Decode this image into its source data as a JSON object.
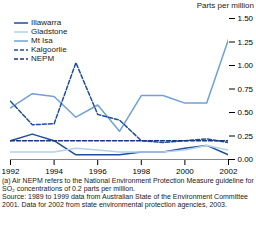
{
  "chart_data": {
    "type": "line",
    "ylabel": "Parts per million",
    "x": [
      1992,
      1993,
      1994,
      1995,
      1996,
      1997,
      1998,
      1999,
      2000,
      2001,
      2002
    ],
    "series": [
      {
        "name": "Illawarra",
        "color": "#1f4e9c",
        "line_style": "solid",
        "values": [
          0.2,
          0.27,
          0.2,
          0.05,
          0.05,
          0.05,
          0.08,
          0.08,
          0.12,
          0.15,
          0.05
        ]
      },
      {
        "name": "Gladstone",
        "color": "#b3d0ec",
        "line_style": "solid",
        "values": [
          0.08,
          0.08,
          0.08,
          0.12,
          0.1,
          0.08,
          0.08,
          0.08,
          0.1,
          0.15,
          0.1
        ]
      },
      {
        "name": "Mt Isa",
        "color": "#6fa0d8",
        "line_style": "solid",
        "values": [
          0.55,
          0.7,
          0.67,
          0.45,
          0.58,
          0.3,
          0.68,
          0.68,
          0.6,
          0.6,
          1.28
        ]
      },
      {
        "name": "Kalgoorlie",
        "color": "#1f4e9c",
        "line_style": "dashed",
        "values": [
          0.62,
          0.37,
          0.38,
          1.03,
          0.48,
          0.42,
          0.2,
          0.18,
          0.2,
          0.22,
          0.18
        ]
      },
      {
        "name": "NEPM",
        "color": "#1a3580",
        "line_style": "dashed",
        "values": [
          0.2,
          0.2,
          0.2,
          0.2,
          0.2,
          0.2,
          0.2,
          0.2,
          0.2,
          0.2,
          0.2
        ]
      }
    ],
    "xlim": [
      1992,
      2002
    ],
    "xticks": [
      1992,
      1994,
      1996,
      1998,
      2000,
      2002
    ],
    "ylim": [
      0,
      1.5
    ],
    "yticks": [
      {
        "value": 0,
        "label": "0.00"
      },
      {
        "value": 0.25,
        "label": "0.25"
      },
      {
        "value": 0.5,
        "label": "0.50"
      },
      {
        "value": 0.75,
        "label": "0.75"
      },
      {
        "value": 1,
        "label": "1.00"
      },
      {
        "value": 1.25,
        "label": "1.25"
      },
      {
        "value": 1.5,
        "label": "1.50"
      }
    ],
    "grid": false,
    "legend": "upper left",
    "notes": [
      "(a) Air NEPM refers to the National Environment Protection Measure guideline for SO₂ concentrations of 0.2 parts per million.",
      "Source: 1989 to 1999 data from Australian State of the Environment Committee 2001. Data for 2002 from state environmental protection agencies, 2003."
    ]
  }
}
